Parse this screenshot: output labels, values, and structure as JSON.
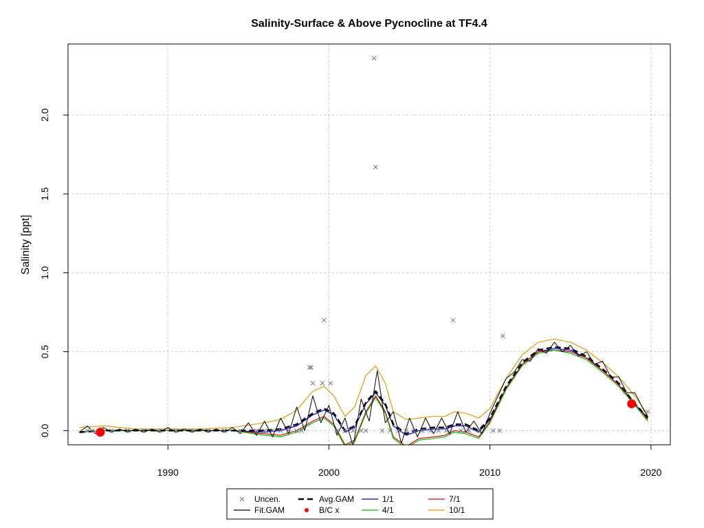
{
  "chart_data": {
    "type": "line",
    "title": "Salinity-Surface & Above Pycnocline at TF4.4",
    "xlabel": "",
    "ylabel": "Salinity [ppt]",
    "xlim": [
      1983.8,
      2021.2
    ],
    "ylim": [
      -0.09,
      2.45
    ],
    "x_ticks": [
      1990,
      2000,
      2010,
      2020
    ],
    "y_ticks": [
      0.0,
      0.5,
      1.0,
      1.5,
      2.0
    ],
    "x_tick_labels": [
      "1990",
      "2000",
      "2010",
      "2020"
    ],
    "y_tick_labels": [
      "0.0",
      "0.5",
      "1.0",
      "1.5",
      "2.0"
    ],
    "grid": true,
    "legend_position": "bottom-center",
    "legend": [
      {
        "label": "Uncen.",
        "type": "marker-x",
        "color": "#6b7a8f"
      },
      {
        "label": "Avg.GAM",
        "type": "dashed",
        "color": "#000000"
      },
      {
        "label": "1/1",
        "type": "line",
        "color": "#0000cc"
      },
      {
        "label": "7/1",
        "type": "line",
        "color": "#dd0000"
      },
      {
        "label": "Fit.GAM",
        "type": "line",
        "color": "#000000"
      },
      {
        "label": "B/C x",
        "type": "marker-dot",
        "color": "#ff0000"
      },
      {
        "label": "4/1",
        "type": "line",
        "color": "#00bb00"
      },
      {
        "label": "10/1",
        "type": "line",
        "color": "#e69a00"
      }
    ],
    "uncensored_points": {
      "x": [
        1985.0,
        1985.3,
        1986.5,
        1987.5,
        1988.5,
        1989.5,
        1990.5,
        1991.5,
        1992.5,
        1993.5,
        1994.5,
        1995.5,
        1996.0,
        1996.5,
        1997.0,
        1997.5,
        1998.0,
        1998.3,
        1998.8,
        1998.9,
        1999.0,
        1999.6,
        1999.7,
        2000.1,
        2000.5,
        2001.0,
        2001.5,
        2002.0,
        2002.3,
        2002.8,
        2002.9,
        2003.3,
        2003.8,
        2004.3,
        2004.8,
        2005.3,
        2005.8,
        2006.3,
        2006.8,
        2007.3,
        2007.7,
        2008.2,
        2008.7,
        2009.3,
        2010.2,
        2010.6,
        2010.8,
        2019.8
      ],
      "y": [
        0.0,
        0.0,
        0.0,
        0.0,
        0.0,
        0.0,
        0.0,
        0.0,
        0.0,
        0.0,
        0.0,
        0.0,
        0.0,
        0.0,
        0.0,
        0.0,
        0.0,
        0.0,
        0.4,
        0.4,
        0.3,
        0.3,
        0.7,
        0.3,
        0.0,
        0.0,
        0.0,
        0.0,
        0.0,
        2.36,
        1.67,
        0.0,
        0.0,
        0.0,
        0.0,
        0.0,
        0.0,
        0.0,
        0.0,
        0.0,
        0.7,
        0.0,
        0.0,
        0.0,
        0.0,
        0.0,
        0.6,
        0.12
      ]
    },
    "bc_points": {
      "x": [
        1985.8,
        2018.8
      ],
      "y": [
        -0.01,
        0.17
      ]
    },
    "avg_gam": {
      "x": [
        1984.5,
        1986,
        1988,
        1990,
        1992,
        1994,
        1996,
        1997,
        1998,
        1999,
        1999.7,
        2000.3,
        2001,
        2001.6,
        2002.3,
        2002.9,
        2003.5,
        2004,
        2004.8,
        2005.6,
        2006.5,
        2007.2,
        2007.8,
        2008.5,
        2009.3,
        2010,
        2011,
        2012,
        2013,
        2014,
        2015,
        2016,
        2017,
        2018,
        2019,
        2019.8
      ],
      "y": [
        -0.01,
        0.0,
        0.0,
        0.0,
        0.0,
        0.0,
        0.0,
        0.01,
        0.04,
        0.11,
        0.14,
        0.11,
        0.0,
        0.03,
        0.18,
        0.25,
        0.17,
        0.04,
        -0.02,
        0.01,
        0.02,
        0.02,
        0.04,
        0.04,
        0.0,
        0.08,
        0.28,
        0.43,
        0.51,
        0.53,
        0.52,
        0.47,
        0.39,
        0.3,
        0.17,
        0.08
      ]
    },
    "series": [
      {
        "name": "1/1",
        "color": "#0000cc",
        "x": [
          1984.5,
          1986,
          1988,
          1990,
          1992,
          1994,
          1996,
          1997,
          1998,
          1999,
          1999.7,
          2000.3,
          2001,
          2001.6,
          2002.3,
          2002.9,
          2003.5,
          2004,
          2004.8,
          2005.6,
          2006.5,
          2007.2,
          2007.8,
          2008.5,
          2009.3,
          2010,
          2011,
          2012,
          2013,
          2014,
          2015,
          2016,
          2017,
          2018,
          2019,
          2019.8
        ],
        "y": [
          -0.01,
          0.0,
          0.0,
          0.0,
          0.0,
          0.0,
          -0.01,
          0.0,
          0.03,
          0.1,
          0.13,
          0.1,
          -0.01,
          0.02,
          0.17,
          0.24,
          0.16,
          0.03,
          -0.03,
          0.0,
          0.01,
          0.01,
          0.03,
          0.03,
          -0.01,
          0.07,
          0.27,
          0.42,
          0.5,
          0.52,
          0.51,
          0.46,
          0.38,
          0.29,
          0.17,
          0.08
        ]
      },
      {
        "name": "7/1",
        "color": "#dd0000",
        "x": [
          1984.5,
          1986,
          1988,
          1990,
          1992,
          1994,
          1996,
          1997,
          1998,
          1999,
          1999.7,
          2000.3,
          2001,
          2001.6,
          2002.3,
          2002.9,
          2003.5,
          2004,
          2004.8,
          2005.6,
          2006.5,
          2007.2,
          2007.8,
          2008.5,
          2009.3,
          2010,
          2011,
          2012,
          2013,
          2014,
          2015,
          2016,
          2017,
          2018,
          2019,
          2019.8
        ],
        "y": [
          -0.01,
          0.0,
          0.0,
          0.0,
          0.0,
          0.0,
          -0.02,
          -0.03,
          0.0,
          0.06,
          0.09,
          0.04,
          -0.09,
          -0.06,
          0.12,
          0.22,
          0.12,
          -0.04,
          -0.1,
          -0.05,
          -0.04,
          -0.03,
          0.0,
          -0.01,
          -0.04,
          0.06,
          0.27,
          0.42,
          0.5,
          0.51,
          0.5,
          0.46,
          0.38,
          0.29,
          0.17,
          0.07
        ]
      },
      {
        "name": "4/1",
        "color": "#00bb00",
        "x": [
          1984.5,
          1986,
          1988,
          1990,
          1992,
          1994,
          1996,
          1997,
          1998,
          1999,
          1999.7,
          2000.3,
          2001,
          2001.6,
          2002.3,
          2002.9,
          2003.5,
          2004,
          2004.8,
          2005.6,
          2006.5,
          2007.2,
          2007.8,
          2008.5,
          2009.3,
          2010,
          2011,
          2012,
          2013,
          2014,
          2015,
          2016,
          2017,
          2018,
          2019,
          2019.8
        ],
        "y": [
          -0.01,
          0.0,
          0.0,
          0.0,
          0.0,
          0.0,
          -0.03,
          -0.04,
          -0.01,
          0.05,
          0.08,
          0.03,
          -0.1,
          -0.07,
          0.11,
          0.21,
          0.11,
          -0.05,
          -0.11,
          -0.06,
          -0.05,
          -0.04,
          -0.01,
          -0.02,
          -0.05,
          0.05,
          0.26,
          0.41,
          0.49,
          0.51,
          0.49,
          0.45,
          0.37,
          0.28,
          0.16,
          0.06
        ]
      },
      {
        "name": "10/1",
        "color": "#e69a00",
        "x": [
          1984.5,
          1986,
          1988,
          1990,
          1992,
          1994,
          1996,
          1997,
          1998,
          1999,
          1999.7,
          2000.3,
          2001,
          2001.6,
          2002.3,
          2002.9,
          2003.5,
          2004,
          2004.8,
          2005.6,
          2006.5,
          2007.2,
          2007.8,
          2008.5,
          2009.3,
          2010,
          2011,
          2012,
          2013,
          2014,
          2015,
          2016,
          2017,
          2018,
          2019,
          2019.8
        ],
        "y": [
          0.02,
          0.03,
          0.01,
          0.01,
          0.01,
          0.02,
          0.05,
          0.07,
          0.13,
          0.25,
          0.28,
          0.22,
          0.09,
          0.15,
          0.35,
          0.41,
          0.3,
          0.12,
          0.07,
          0.08,
          0.09,
          0.09,
          0.12,
          0.11,
          0.08,
          0.14,
          0.33,
          0.48,
          0.56,
          0.58,
          0.56,
          0.51,
          0.43,
          0.34,
          0.22,
          0.1
        ]
      },
      {
        "name": "Fit.GAM",
        "color": "#000000",
        "x": [
          1984.5,
          1985,
          1985.5,
          1986,
          1986.5,
          1987,
          1987.5,
          1988,
          1988.5,
          1989,
          1989.5,
          1990,
          1990.5,
          1991,
          1991.5,
          1992,
          1992.5,
          1993,
          1993.5,
          1994,
          1994.5,
          1995,
          1995.5,
          1996,
          1996.5,
          1997,
          1997.5,
          1998,
          1998.5,
          1999,
          1999.5,
          2000,
          2000.5,
          2001,
          2001.5,
          2002,
          2002.5,
          2003,
          2003.5,
          2004,
          2004.5,
          2005,
          2005.5,
          2006,
          2006.5,
          2007,
          2007.5,
          2008,
          2008.5,
          2009,
          2009.5,
          2010,
          2010.5,
          2011,
          2011.5,
          2012,
          2012.5,
          2013,
          2013.5,
          2014,
          2014.5,
          2015,
          2015.5,
          2016,
          2016.5,
          2017,
          2017.5,
          2018,
          2018.5,
          2019,
          2019.5,
          2019.8
        ],
        "y": [
          -0.01,
          0.03,
          -0.02,
          0.02,
          -0.01,
          0.01,
          -0.01,
          0.01,
          -0.01,
          0.01,
          -0.01,
          0.02,
          -0.01,
          0.01,
          -0.01,
          0.01,
          -0.01,
          0.01,
          -0.01,
          0.02,
          -0.02,
          0.05,
          -0.03,
          0.06,
          -0.04,
          0.08,
          -0.02,
          0.15,
          0.0,
          0.22,
          0.05,
          0.16,
          -0.03,
          0.08,
          -0.1,
          0.2,
          0.06,
          0.38,
          0.05,
          0.12,
          -0.08,
          0.08,
          -0.04,
          0.08,
          -0.02,
          0.08,
          -0.02,
          0.12,
          -0.01,
          0.06,
          -0.02,
          0.11,
          0.22,
          0.33,
          0.37,
          0.45,
          0.44,
          0.52,
          0.49,
          0.56,
          0.5,
          0.54,
          0.47,
          0.5,
          0.42,
          0.44,
          0.34,
          0.34,
          0.24,
          0.24,
          0.14,
          0.09
        ]
      }
    ]
  }
}
